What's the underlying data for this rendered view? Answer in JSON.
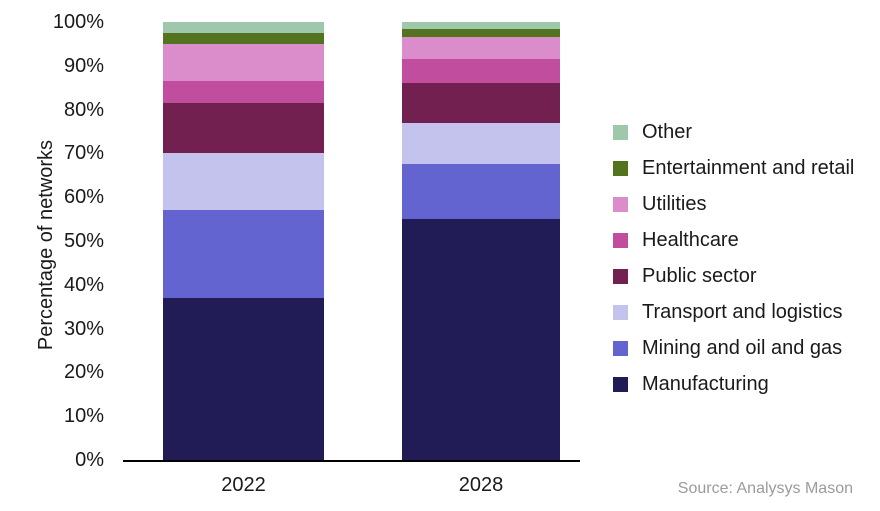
{
  "chart_data": {
    "type": "bar",
    "stacked": true,
    "percent_stacked": true,
    "title": "",
    "xlabel": "",
    "ylabel": "Percentage of networks",
    "categories": [
      "2022",
      "2028"
    ],
    "yticks": [
      "0%",
      "10%",
      "20%",
      "30%",
      "40%",
      "50%",
      "60%",
      "70%",
      "80%",
      "90%",
      "100%"
    ],
    "ylim": [
      0,
      100
    ],
    "grid": false,
    "legend_position": "right",
    "series": [
      {
        "name": "Manufacturing",
        "color": "#211c55",
        "values": [
          37,
          55
        ]
      },
      {
        "name": "Mining and oil and gas",
        "color": "#6464d0",
        "values": [
          20,
          12.5
        ]
      },
      {
        "name": "Transport and logistics",
        "color": "#c3c3ed",
        "values": [
          13,
          9.5
        ]
      },
      {
        "name": "Public sector",
        "color": "#722050",
        "values": [
          11.5,
          9
        ]
      },
      {
        "name": "Healthcare",
        "color": "#c04d9d",
        "values": [
          5,
          5.5
        ]
      },
      {
        "name": "Utilities",
        "color": "#db8ccb",
        "values": [
          8.5,
          5
        ]
      },
      {
        "name": "Entertainment and retail",
        "color": "#54731f",
        "values": [
          2.5,
          2
        ]
      },
      {
        "name": "Other",
        "color": "#9fc7ab",
        "values": [
          2.5,
          1.5
        ]
      }
    ]
  },
  "source_note": "Source: Analysys Mason",
  "colors": {
    "axis_line": "#000000",
    "text": "#1a1a1a",
    "source_text": "#9b9b9b"
  }
}
